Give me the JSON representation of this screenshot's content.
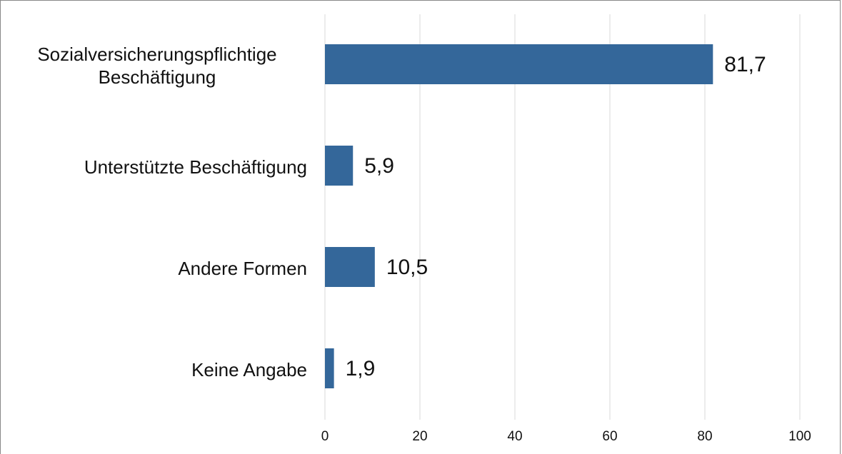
{
  "chart_data": {
    "type": "bar",
    "orientation": "horizontal",
    "categories": [
      "Sozialversicherungspflichtige Beschäftigung",
      "Unterstützte Beschäftigung",
      "Andere Formen",
      "Keine Angabe"
    ],
    "values": [
      81.7,
      5.9,
      10.5,
      1.9
    ],
    "value_labels": [
      "81,7",
      "5,9",
      "10,5",
      "1,9"
    ],
    "color": "#34679a",
    "xlim": [
      0,
      100
    ],
    "xticks": [
      0,
      20,
      40,
      60,
      80,
      100
    ],
    "grid": true
  }
}
